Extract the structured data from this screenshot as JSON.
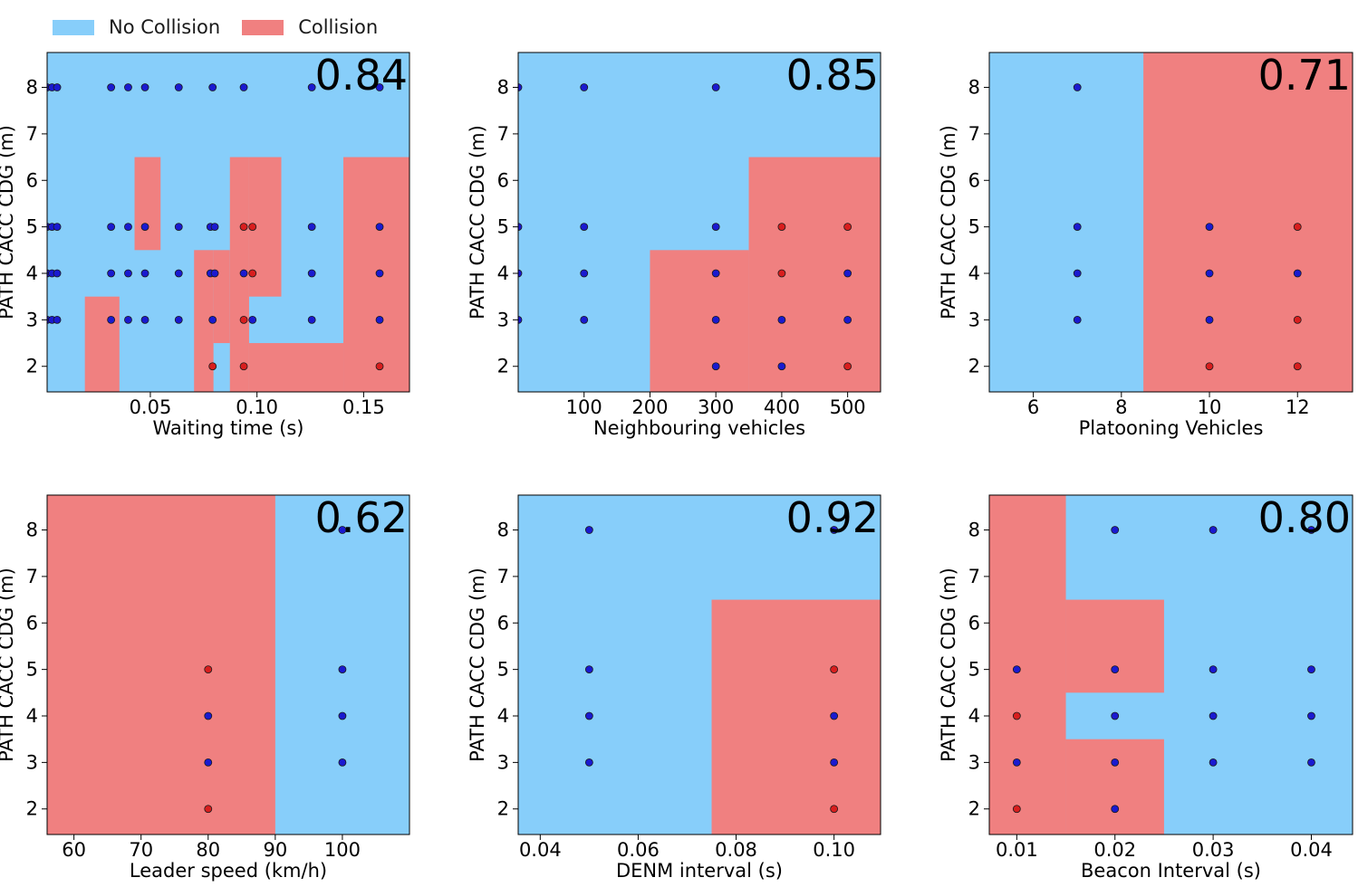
{
  "legend": {
    "no_collision": {
      "label": "No Collision",
      "color": "#87CEFA"
    },
    "collision": {
      "label": "Collision",
      "color": "#F08080"
    }
  },
  "colors": {
    "point_collision": "#d81e1e",
    "point_no_collision": "#1a1ad0",
    "point_edge": "#1a1a1a"
  },
  "chart_data": [
    {
      "type": "scatter",
      "xlabel": "Waiting time (s)",
      "ylabel": "PATH CACC CDG (m)",
      "score": "0.84",
      "xlim": [
        0.0016,
        0.1715
      ],
      "ylim": [
        1.45,
        8.75
      ],
      "xticks": [
        {
          "v": 0.05,
          "label": "0.05"
        },
        {
          "v": 0.1,
          "label": "0.10"
        },
        {
          "v": 0.15,
          "label": "0.15"
        }
      ],
      "yticks": [
        2,
        3,
        4,
        5,
        6,
        7,
        8
      ],
      "regions_collision": [
        [
          0.0193,
          0.0355,
          1.45,
          3.5
        ],
        [
          0.0426,
          0.0548,
          4.5,
          6.5
        ],
        [
          0.0705,
          0.0796,
          1.45,
          4.5
        ],
        [
          0.0796,
          0.0873,
          2.5,
          4.5
        ],
        [
          0.0873,
          0.0963,
          1.45,
          6.5
        ],
        [
          0.0963,
          0.1114,
          3.5,
          6.5
        ],
        [
          0.0963,
          0.1405,
          1.45,
          2.5
        ],
        [
          0.1405,
          0.1715,
          1.45,
          6.5
        ]
      ],
      "points": [
        [
          0.0016,
          8,
          0
        ],
        [
          0.0039,
          8,
          0
        ],
        [
          0.0063,
          8,
          0
        ],
        [
          0.0316,
          8,
          0
        ],
        [
          0.0396,
          8,
          0
        ],
        [
          0.0475,
          8,
          0
        ],
        [
          0.0633,
          8,
          0
        ],
        [
          0.0792,
          8,
          0
        ],
        [
          0.0938,
          8,
          0
        ],
        [
          0.1257,
          8,
          0
        ],
        [
          0.1575,
          8,
          0
        ],
        [
          0.0016,
          5,
          0
        ],
        [
          0.0039,
          5,
          0
        ],
        [
          0.0063,
          5,
          0
        ],
        [
          0.0316,
          5,
          0
        ],
        [
          0.0396,
          5,
          0
        ],
        [
          0.0475,
          5,
          0
        ],
        [
          0.0633,
          5,
          0
        ],
        [
          0.0782,
          5,
          0
        ],
        [
          0.0802,
          5,
          0
        ],
        [
          0.0938,
          5,
          1
        ],
        [
          0.0979,
          5,
          1
        ],
        [
          0.1257,
          5,
          0
        ],
        [
          0.1575,
          5,
          0
        ],
        [
          0.0016,
          4,
          0
        ],
        [
          0.0039,
          4,
          0
        ],
        [
          0.0063,
          4,
          0
        ],
        [
          0.0316,
          4,
          0
        ],
        [
          0.0396,
          4,
          0
        ],
        [
          0.0475,
          4,
          0
        ],
        [
          0.0633,
          4,
          0
        ],
        [
          0.0782,
          4,
          0
        ],
        [
          0.0802,
          4,
          0
        ],
        [
          0.0938,
          4,
          0
        ],
        [
          0.0979,
          4,
          1
        ],
        [
          0.1257,
          4,
          0
        ],
        [
          0.1575,
          4,
          0
        ],
        [
          0.0016,
          3,
          0
        ],
        [
          0.0039,
          3,
          0
        ],
        [
          0.0063,
          3,
          0
        ],
        [
          0.0316,
          3,
          0
        ],
        [
          0.0396,
          3,
          0
        ],
        [
          0.0475,
          3,
          0
        ],
        [
          0.0633,
          3,
          0
        ],
        [
          0.0792,
          3,
          0
        ],
        [
          0.0938,
          3,
          1
        ],
        [
          0.0979,
          3,
          0
        ],
        [
          0.1257,
          3,
          0
        ],
        [
          0.1575,
          3,
          0
        ],
        [
          0.0792,
          2,
          1
        ],
        [
          0.0938,
          2,
          1
        ],
        [
          0.1575,
          2,
          1
        ]
      ]
    },
    {
      "type": "scatter",
      "xlabel": "Neighbouring vehicles",
      "ylabel": "PATH CACC CDG (m)",
      "score": "0.85",
      "xlim": [
        0,
        550
      ],
      "ylim": [
        1.45,
        8.75
      ],
      "xticks": [
        {
          "v": 100,
          "label": "100"
        },
        {
          "v": 200,
          "label": "200"
        },
        {
          "v": 300,
          "label": "300"
        },
        {
          "v": 400,
          "label": "400"
        },
        {
          "v": 500,
          "label": "500"
        }
      ],
      "yticks": [
        2,
        3,
        4,
        5,
        6,
        7,
        8
      ],
      "regions_collision": [
        [
          200,
          350,
          1.45,
          4.5
        ],
        [
          350,
          550,
          1.45,
          6.5
        ]
      ],
      "points": [
        [
          0,
          8,
          0
        ],
        [
          100,
          8,
          0
        ],
        [
          300,
          8,
          0
        ],
        [
          0,
          5,
          0
        ],
        [
          100,
          5,
          0
        ],
        [
          300,
          5,
          0
        ],
        [
          400,
          5,
          1
        ],
        [
          500,
          5,
          1
        ],
        [
          0,
          4,
          0
        ],
        [
          100,
          4,
          0
        ],
        [
          300,
          4,
          0
        ],
        [
          400,
          4,
          1
        ],
        [
          500,
          4,
          0
        ],
        [
          0,
          3,
          0
        ],
        [
          100,
          3,
          0
        ],
        [
          300,
          3,
          0
        ],
        [
          400,
          3,
          0
        ],
        [
          500,
          3,
          0
        ],
        [
          300,
          2,
          0
        ],
        [
          400,
          2,
          0
        ],
        [
          500,
          2,
          1
        ]
      ]
    },
    {
      "type": "scatter",
      "xlabel": "Platooning Vehicles",
      "ylabel": "PATH CACC CDG (m)",
      "score": "0.71",
      "xlim": [
        5,
        13.25
      ],
      "ylim": [
        1.45,
        8.75
      ],
      "xticks": [
        {
          "v": 6,
          "label": "6"
        },
        {
          "v": 8,
          "label": "8"
        },
        {
          "v": 10,
          "label": "10"
        },
        {
          "v": 12,
          "label": "12"
        }
      ],
      "yticks": [
        2,
        3,
        4,
        5,
        6,
        7,
        8
      ],
      "regions_collision": [
        [
          8.5,
          13.25,
          1.45,
          8.75
        ]
      ],
      "points": [
        [
          7,
          8,
          0
        ],
        [
          7,
          5,
          0
        ],
        [
          10,
          5,
          0
        ],
        [
          12,
          5,
          1
        ],
        [
          7,
          4,
          0
        ],
        [
          10,
          4,
          0
        ],
        [
          12,
          4,
          0
        ],
        [
          7,
          3,
          0
        ],
        [
          10,
          3,
          0
        ],
        [
          12,
          3,
          1
        ],
        [
          10,
          2,
          1
        ],
        [
          12,
          2,
          1
        ]
      ]
    },
    {
      "type": "scatter",
      "xlabel": "Leader speed (km/h)",
      "ylabel": "PATH CACC CDG (m)",
      "score": "0.62",
      "xlim": [
        56,
        110
      ],
      "ylim": [
        1.45,
        8.75
      ],
      "xticks": [
        {
          "v": 60,
          "label": "60"
        },
        {
          "v": 70,
          "label": "70"
        },
        {
          "v": 80,
          "label": "80"
        },
        {
          "v": 90,
          "label": "90"
        },
        {
          "v": 100,
          "label": "100"
        }
      ],
      "yticks": [
        2,
        3,
        4,
        5,
        6,
        7,
        8
      ],
      "regions_collision": [
        [
          56,
          90,
          1.45,
          8.75
        ]
      ],
      "points": [
        [
          100,
          8,
          0
        ],
        [
          80,
          5,
          1
        ],
        [
          100,
          5,
          0
        ],
        [
          80,
          4,
          0
        ],
        [
          100,
          4,
          0
        ],
        [
          80,
          3,
          0
        ],
        [
          100,
          3,
          0
        ],
        [
          80,
          2,
          1
        ]
      ]
    },
    {
      "type": "scatter",
      "xlabel": "DENM interval (s)",
      "ylabel": "PATH CACC CDG (m)",
      "score": "0.92",
      "xlim": [
        0.0355,
        0.1095
      ],
      "ylim": [
        1.45,
        8.75
      ],
      "xticks": [
        {
          "v": 0.04,
          "label": "0.04"
        },
        {
          "v": 0.06,
          "label": "0.06"
        },
        {
          "v": 0.08,
          "label": "0.08"
        },
        {
          "v": 0.1,
          "label": "0.10"
        }
      ],
      "yticks": [
        2,
        3,
        4,
        5,
        6,
        7,
        8
      ],
      "regions_collision": [
        [
          0.075,
          0.1095,
          1.45,
          6.5
        ]
      ],
      "points": [
        [
          0.05,
          8,
          0
        ],
        [
          0.1,
          8,
          0
        ],
        [
          0.05,
          5,
          0
        ],
        [
          0.1,
          5,
          1
        ],
        [
          0.05,
          4,
          0
        ],
        [
          0.1,
          4,
          0
        ],
        [
          0.05,
          3,
          0
        ],
        [
          0.1,
          3,
          0
        ],
        [
          0.1,
          2,
          1
        ]
      ]
    },
    {
      "type": "scatter",
      "xlabel": "Beacon Interval (s)",
      "ylabel": "PATH CACC CDG (m)",
      "score": "0.80",
      "xlim": [
        0.0072,
        0.0442
      ],
      "ylim": [
        1.45,
        8.75
      ],
      "xticks": [
        {
          "v": 0.01,
          "label": "0.01"
        },
        {
          "v": 0.02,
          "label": "0.02"
        },
        {
          "v": 0.03,
          "label": "0.03"
        },
        {
          "v": 0.04,
          "label": "0.04"
        }
      ],
      "yticks": [
        2,
        3,
        4,
        5,
        6,
        7,
        8
      ],
      "regions_collision": [
        [
          0.0072,
          0.015,
          1.45,
          8.75
        ],
        [
          0.015,
          0.025,
          4.5,
          6.5
        ],
        [
          0.015,
          0.025,
          1.45,
          3.5
        ]
      ],
      "points": [
        [
          0.02,
          8,
          0
        ],
        [
          0.03,
          8,
          0
        ],
        [
          0.04,
          8,
          0
        ],
        [
          0.01,
          5,
          0
        ],
        [
          0.02,
          5,
          0
        ],
        [
          0.03,
          5,
          0
        ],
        [
          0.04,
          5,
          0
        ],
        [
          0.01,
          4,
          1
        ],
        [
          0.02,
          4,
          0
        ],
        [
          0.03,
          4,
          0
        ],
        [
          0.04,
          4,
          0
        ],
        [
          0.01,
          3,
          0
        ],
        [
          0.02,
          3,
          0
        ],
        [
          0.03,
          3,
          0
        ],
        [
          0.04,
          3,
          0
        ],
        [
          0.01,
          2,
          1
        ],
        [
          0.02,
          2,
          0
        ]
      ]
    }
  ]
}
